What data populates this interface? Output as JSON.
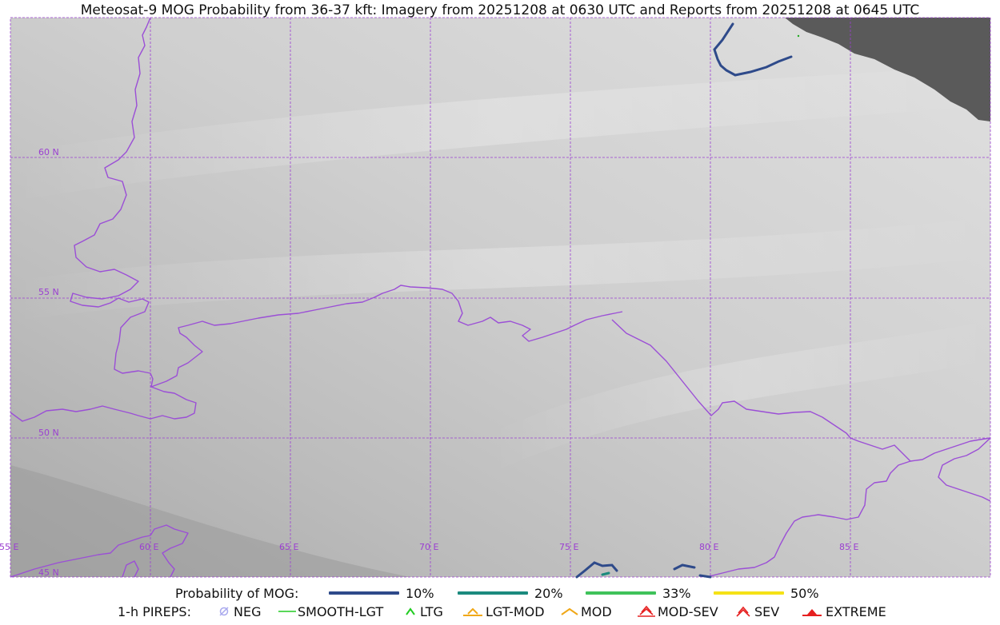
{
  "title": "Meteosat-9 MOG Probability from 36-37 kft: Imagery from 20251208 at 0630 UTC and Reports from 20251208 at 0645 UTC",
  "map": {
    "lat_labels": [
      "60 N",
      "55 N",
      "50 N",
      "45 N"
    ],
    "lon_labels": [
      "55 E",
      "60 E",
      "65 E",
      "70 E",
      "75 E",
      "80 E",
      "85 E"
    ],
    "grid_color": "#9b3fd1",
    "border_color": "#9b4fd6",
    "no_data_color": "#5a5a5a"
  },
  "legend": {
    "prob_label": "Probability of MOG:",
    "prob_items": [
      {
        "label": "10%",
        "color": "#2e4a8a"
      },
      {
        "label": "20%",
        "color": "#1b8a7e"
      },
      {
        "label": "33%",
        "color": "#3fc25a"
      },
      {
        "label": "50%",
        "color": "#f5e216"
      }
    ],
    "pirep_label": "1-h PIREPS:",
    "pirep_items": [
      {
        "label": "NEG",
        "color": "#a9a9ee",
        "icon": "neg-circle-icon"
      },
      {
        "label": "SMOOTH-LGT",
        "color": "#22cc22",
        "icon": "line-icon"
      },
      {
        "label": "LTG",
        "color": "#22cc22",
        "icon": "caret-icon"
      },
      {
        "label": "LGT-MOD",
        "color": "#f0a818",
        "icon": "caret-bar-icon"
      },
      {
        "label": "MOD",
        "color": "#f0a818",
        "icon": "caret-icon"
      },
      {
        "label": "MOD-SEV",
        "color": "#e62020",
        "icon": "double-caret-bar-icon"
      },
      {
        "label": "SEV",
        "color": "#e62020",
        "icon": "double-caret-icon"
      },
      {
        "label": "EXTREME",
        "color": "#e62020",
        "icon": "filled-caret-icon"
      }
    ]
  }
}
